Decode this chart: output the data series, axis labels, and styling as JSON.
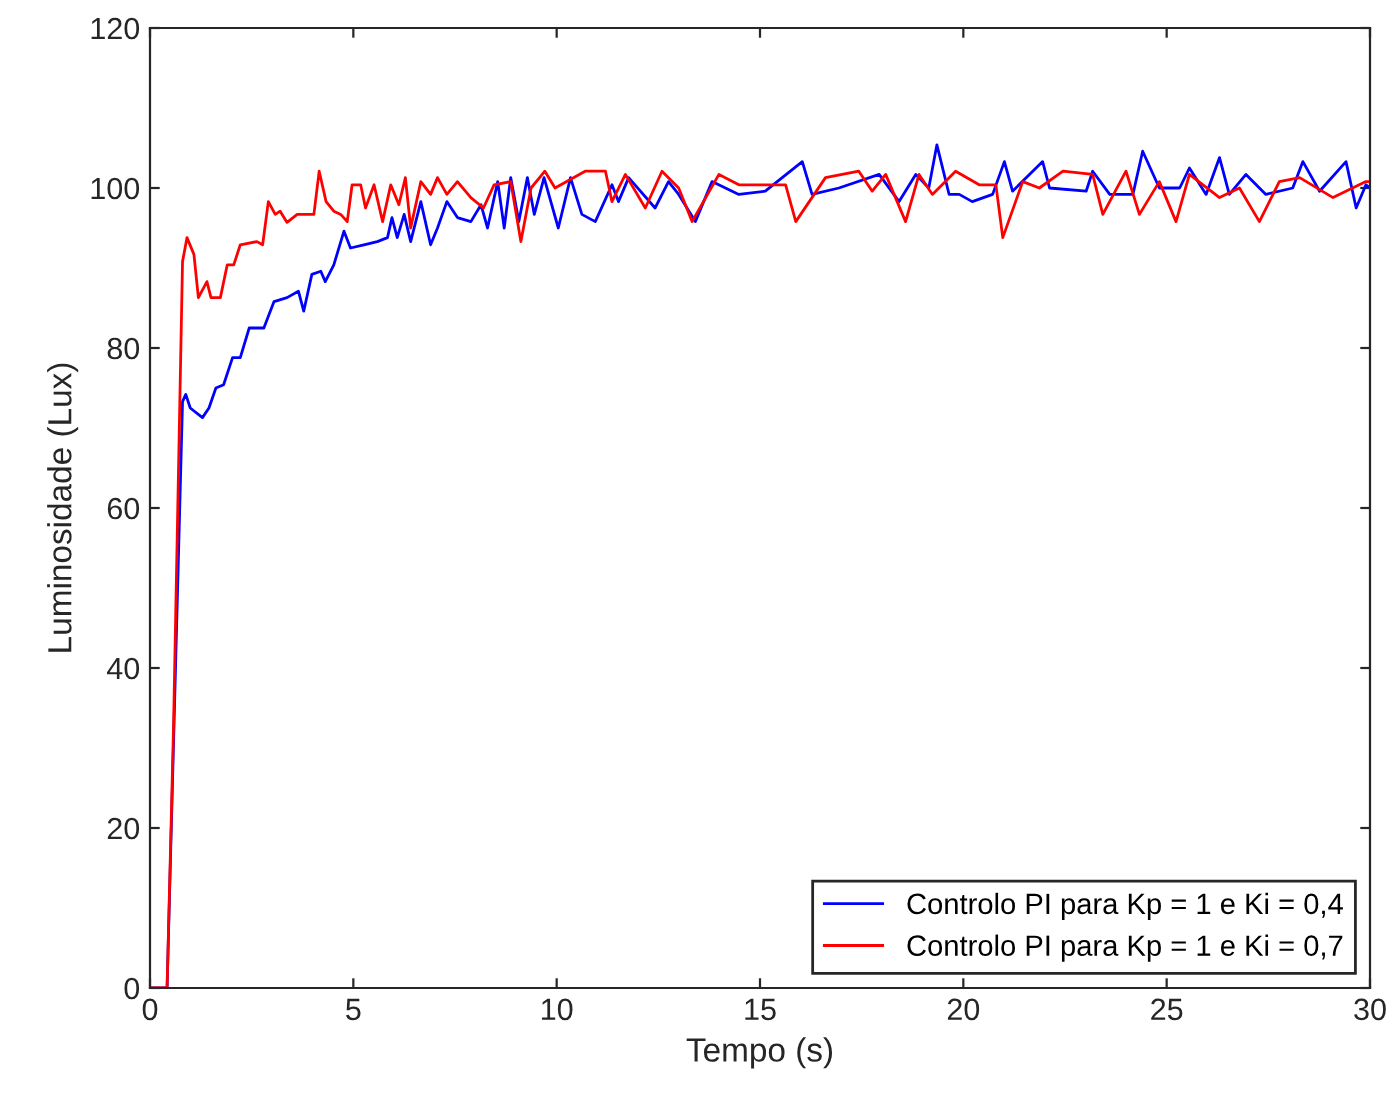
{
  "chart_data": {
    "type": "line",
    "xlabel": "Tempo (s)",
    "ylabel": "Luminosidade (Lux)",
    "xlim": [
      0,
      30
    ],
    "ylim": [
      0,
      120
    ],
    "xticks": [
      0,
      5,
      10,
      15,
      20,
      25,
      30
    ],
    "yticks": [
      0,
      20,
      40,
      60,
      80,
      100,
      120
    ],
    "grid": false,
    "legend": "bottom right",
    "marker": "none",
    "line_style": "solid",
    "series": [
      {
        "name": "Controlo PI para Kp = 1 e Ki = 0,4",
        "color": "#0000ff",
        "x": [
          0,
          0.42,
          0.8,
          0.88,
          0.99,
          1.29,
          1.45,
          1.62,
          1.81,
          2.03,
          2.22,
          2.44,
          2.8,
          3.05,
          3.37,
          3.65,
          3.78,
          3.98,
          4.2,
          4.31,
          4.52,
          4.77,
          4.93,
          5.26,
          5.59,
          5.84,
          5.95,
          6.08,
          6.25,
          6.41,
          6.66,
          6.9,
          7.07,
          7.3,
          7.56,
          7.89,
          8.14,
          8.3,
          8.55,
          8.71,
          8.87,
          9.07,
          9.28,
          9.45,
          9.69,
          10.04,
          10.34,
          10.62,
          10.95,
          11.36,
          11.52,
          11.77,
          12.42,
          12.75,
          13.0,
          13.41,
          13.82,
          14.48,
          15.13,
          16.04,
          16.28,
          16.94,
          17.93,
          18.42,
          18.83,
          19.15,
          19.35,
          19.65,
          19.9,
          20.22,
          20.72,
          21.01,
          21.21,
          21.95,
          22.12,
          23.02,
          23.18,
          23.6,
          24.17,
          24.41,
          24.82,
          25.32,
          25.56,
          25.97,
          26.3,
          26.54,
          26.95,
          27.44,
          28.1,
          28.35,
          28.76,
          29.41,
          29.66,
          29.9,
          30
        ],
        "values": [
          0,
          0,
          73.3,
          74.2,
          72.5,
          71.3,
          72.5,
          75,
          75.4,
          78.8,
          78.8,
          82.5,
          82.5,
          85.8,
          86.3,
          87.1,
          84.6,
          89.2,
          89.6,
          88.3,
          90.4,
          94.6,
          92.5,
          92.9,
          93.3,
          93.8,
          96.3,
          93.8,
          96.7,
          93.3,
          98.3,
          92.9,
          95,
          98.3,
          96.3,
          95.8,
          97.9,
          95,
          100.8,
          95,
          101.3,
          95.8,
          101.3,
          96.7,
          101.3,
          95,
          101.3,
          96.7,
          95.8,
          100.4,
          98.3,
          101.3,
          97.5,
          100.8,
          99.2,
          95.8,
          100.8,
          99.2,
          99.6,
          103.3,
          99.2,
          100,
          101.7,
          98.3,
          101.7,
          100,
          105.4,
          99.2,
          99.2,
          98.3,
          99.2,
          103.3,
          99.6,
          103.3,
          100,
          99.6,
          102.1,
          99.2,
          99.2,
          104.6,
          100,
          100,
          102.5,
          99.2,
          103.8,
          99.2,
          101.7,
          99.2,
          100,
          103.3,
          99.6,
          103.3,
          97.5,
          100.4,
          100
        ]
      },
      {
        "name": "Controlo PI para Kp = 1 e Ki = 0,7",
        "color": "#ff0000",
        "x": [
          0,
          0.42,
          0.58,
          0.8,
          0.91,
          1.08,
          1.19,
          1.4,
          1.5,
          1.73,
          1.9,
          2.06,
          2.22,
          2.63,
          2.77,
          2.91,
          3.08,
          3.2,
          3.37,
          3.62,
          4.03,
          4.16,
          4.33,
          4.52,
          4.69,
          4.85,
          4.97,
          5.18,
          5.3,
          5.51,
          5.72,
          5.92,
          6.12,
          6.28,
          6.41,
          6.66,
          6.9,
          7.07,
          7.3,
          7.56,
          7.89,
          8.2,
          8.46,
          8.87,
          9.12,
          9.37,
          9.71,
          9.96,
          10.7,
          11.2,
          11.36,
          11.69,
          12.18,
          12.59,
          13.0,
          13.33,
          13.99,
          14.48,
          15.63,
          15.88,
          16.61,
          17.43,
          17.76,
          18.09,
          18.58,
          18.91,
          19.24,
          19.81,
          20.39,
          20.8,
          20.97,
          21.46,
          21.87,
          22.45,
          23.18,
          23.43,
          24.0,
          24.33,
          24.82,
          25.23,
          25.56,
          26.3,
          26.79,
          27.28,
          27.77,
          28.27,
          29.09,
          29.9,
          30
        ],
        "values": [
          0,
          0,
          33,
          90.8,
          93.8,
          91.7,
          86.3,
          88.3,
          86.3,
          86.3,
          90.4,
          90.4,
          92.9,
          93.3,
          92.9,
          98.3,
          96.7,
          97.1,
          95.7,
          96.7,
          96.7,
          102.1,
          98.3,
          97.1,
          96.7,
          95.8,
          100.4,
          100.4,
          97.5,
          100.4,
          95.8,
          100.4,
          97.9,
          101.3,
          95,
          100.8,
          99.2,
          101.3,
          99.2,
          100.8,
          98.8,
          97.5,
          100.4,
          100.8,
          93.3,
          100,
          102.1,
          100,
          102.1,
          102.1,
          98.3,
          101.7,
          97.5,
          102.1,
          100,
          95.8,
          101.7,
          100.4,
          100.4,
          95.8,
          101.3,
          102.1,
          99.6,
          101.7,
          95.8,
          101.7,
          99.2,
          102.1,
          100.4,
          100.4,
          93.8,
          100.8,
          100,
          102.1,
          101.7,
          96.7,
          102.1,
          96.7,
          100.8,
          95.8,
          101.7,
          98.8,
          100,
          95.8,
          100.8,
          101.3,
          98.8,
          100.8,
          100.8
        ]
      }
    ]
  }
}
